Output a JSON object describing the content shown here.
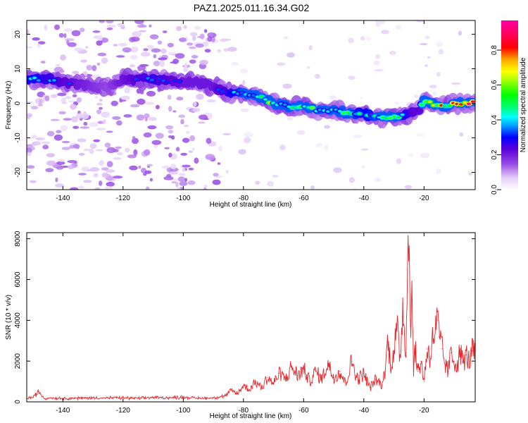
{
  "title": "PAZ1.2025.011.16.34.G02",
  "chart_data": [
    {
      "type": "heatmap",
      "xlabel": "Height of straight line (km)",
      "ylabel": "Frequency (Hz)",
      "xlim": [
        -152,
        -3
      ],
      "ylim": [
        -25,
        24
      ],
      "x_ticks": [
        -140,
        -120,
        -100,
        -80,
        -60,
        -40,
        -20
      ],
      "y_ticks": [
        -20,
        -10,
        0,
        10,
        20
      ],
      "colorbar": {
        "label": "Normalized spectral amplitude",
        "range": [
          0,
          0.97
        ],
        "ticks": [
          0.0,
          0.2,
          0.4,
          0.6,
          0.8
        ]
      },
      "ridge": {
        "name": "",
        "x": [
          -150,
          -145,
          -140,
          -135,
          -130,
          -125,
          -120,
          -115,
          -110,
          -105,
          -100,
          -95,
          -90,
          -85,
          -80,
          -75,
          -70,
          -65,
          -60,
          -55,
          -50,
          -45,
          -40,
          -35,
          -30,
          -25,
          -22,
          -20,
          -18,
          -15,
          -10,
          -5,
          -3
        ],
        "y": [
          7,
          7,
          6,
          5.5,
          5,
          4.5,
          7,
          7,
          7,
          6.5,
          6,
          6,
          5,
          3,
          3,
          2,
          0,
          -1,
          -1,
          -2,
          -2,
          -3,
          -3,
          -4,
          -4,
          -3,
          -2,
          1,
          0,
          -1,
          0,
          0,
          0.5
        ],
        "amplitude": [
          0.45,
          0.4,
          0.35,
          0.3,
          0.25,
          0.2,
          0.3,
          0.35,
          0.4,
          0.35,
          0.3,
          0.3,
          0.3,
          0.4,
          0.55,
          0.6,
          0.65,
          0.55,
          0.6,
          0.65,
          0.6,
          0.55,
          0.45,
          0.55,
          0.6,
          0.4,
          0.3,
          0.7,
          0.85,
          0.8,
          0.9,
          0.95,
          0.97
        ]
      }
    },
    {
      "type": "line",
      "xlabel": "Height of straight line (km)",
      "ylabel": "SNR (10 * v/v)",
      "xlim": [
        -152,
        -3
      ],
      "ylim": [
        0,
        8300
      ],
      "x_ticks": [
        -140,
        -120,
        -100,
        -80,
        -60,
        -40,
        -20
      ],
      "y_ticks": [
        0,
        2000,
        4000,
        6000,
        8000
      ],
      "series": [
        {
          "name": "",
          "color": "#e8262b",
          "x": [
            -152,
            -150,
            -148,
            -146,
            -144,
            -140,
            -135,
            -130,
            -125,
            -120,
            -115,
            -110,
            -105,
            -100,
            -95,
            -90,
            -88,
            -86,
            -84,
            -82,
            -80,
            -78,
            -76,
            -74,
            -72,
            -70,
            -68,
            -66,
            -64,
            -62,
            -60,
            -58,
            -56,
            -54,
            -52,
            -50,
            -48,
            -46,
            -44,
            -42,
            -40,
            -38,
            -36,
            -34,
            -33,
            -32,
            -31,
            -30,
            -29,
            -28,
            -27,
            -26,
            -25.5,
            -25,
            -24.5,
            -24,
            -23.5,
            -23,
            -22,
            -21,
            -20,
            -19,
            -18,
            -17,
            -16,
            -15.5,
            -15,
            -14,
            -13,
            -12,
            -11,
            -10,
            -9,
            -8,
            -7,
            -6,
            -5,
            -4,
            -3
          ],
          "y": [
            180,
            220,
            500,
            150,
            200,
            170,
            180,
            200,
            190,
            200,
            170,
            220,
            200,
            230,
            180,
            200,
            230,
            300,
            550,
            400,
            800,
            600,
            1000,
            700,
            1200,
            900,
            1400,
            1100,
            1700,
            1300,
            1600,
            1000,
            1500,
            1100,
            1900,
            1200,
            1500,
            900,
            2000,
            1100,
            1400,
            700,
            1100,
            800,
            1500,
            3000,
            1800,
            2500,
            3600,
            2200,
            4800,
            2400,
            6500,
            8300,
            4000,
            5200,
            1600,
            2600,
            1500,
            2000,
            1000,
            2600,
            2200,
            3200,
            3600,
            4000,
            3200,
            2600,
            1800,
            1500,
            2400,
            2000,
            1800,
            2500,
            1900,
            2300,
            2000,
            2500,
            2400
          ]
        }
      ]
    }
  ]
}
